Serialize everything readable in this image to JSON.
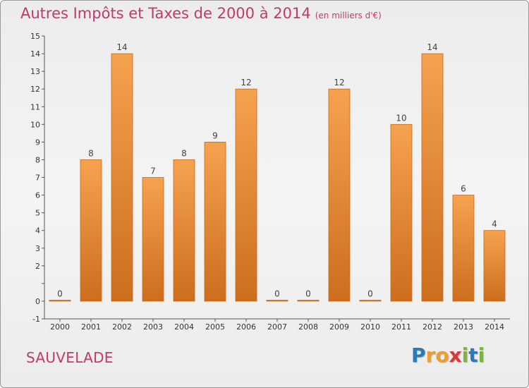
{
  "header": {
    "title": "Autres Impôts et Taxes de 2000 à 2014",
    "unit": "(en milliers d'€)"
  },
  "footer": {
    "commune": "SAUVELADE",
    "logo_letters": [
      "P",
      "r",
      "o",
      "x",
      "i",
      "t",
      "i"
    ]
  },
  "colors": {
    "bar_light": "#f5a24f",
    "bar_dark": "#cc6e1e",
    "title": "#c2396a"
  },
  "chart_data": {
    "type": "bar",
    "title": "Autres Impôts et Taxes de 2000 à 2014",
    "subtitle": "(en milliers d'€)",
    "xlabel": "",
    "ylabel": "",
    "categories": [
      "2000",
      "2001",
      "2002",
      "2003",
      "2004",
      "2005",
      "2006",
      "2007",
      "2008",
      "2009",
      "2010",
      "2011",
      "2012",
      "2013",
      "2014"
    ],
    "values": [
      0,
      8,
      14,
      7,
      8,
      9,
      12,
      0,
      0,
      12,
      0,
      10,
      14,
      6,
      4
    ],
    "value_labels": [
      "0",
      "8",
      "14",
      "7",
      "8",
      "9",
      "12",
      "0",
      "0",
      "12",
      "0",
      "10",
      "14",
      "6",
      "4"
    ],
    "ylim": [
      -1,
      15
    ],
    "yticks": [
      -1,
      0,
      1,
      2,
      3,
      4,
      5,
      6,
      7,
      8,
      9,
      10,
      11,
      12,
      13,
      14,
      15
    ],
    "ytick_labels": [
      "-1",
      "0",
      "",
      "2",
      "3",
      "4",
      "5",
      "6",
      "7",
      "8",
      "9",
      "10",
      "11",
      "12",
      "13",
      "14",
      "15"
    ],
    "grid": false,
    "legend": "none"
  }
}
